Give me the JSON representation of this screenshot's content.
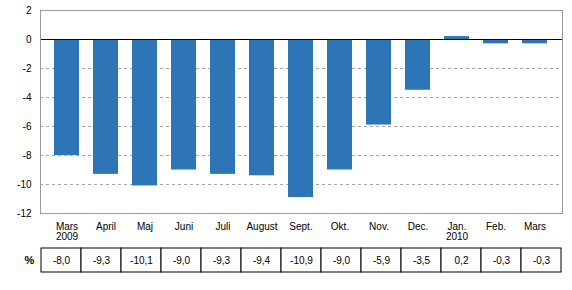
{
  "chart_data": {
    "type": "bar",
    "categories": [
      "Mars\n2009",
      "April",
      "Maj",
      "Juni",
      "Juli",
      "August",
      "Sept.",
      "Okt.",
      "Nov.",
      "Dec.",
      "Jan.\n2010",
      "Feb.",
      "Mars"
    ],
    "values": [
      -8.0,
      -9.3,
      -10.1,
      -9.0,
      -9.3,
      -9.4,
      -10.9,
      -9.0,
      -5.9,
      -3.5,
      0.2,
      -0.3,
      -0.3
    ],
    "value_labels": [
      "-8,0",
      "-9,3",
      "-10,1",
      "-9,0",
      "-9,3",
      "-9,4",
      "-10,9",
      "-9,0",
      "-5,9",
      "-3,5",
      "0,2",
      "-0,3",
      "-0,3"
    ],
    "data_labels": true,
    "color": "#2E75B6",
    "ylim": [
      -12,
      2
    ],
    "yticks": [
      -12,
      -10,
      -8,
      -6,
      -4,
      -2,
      0,
      2
    ],
    "grid": true,
    "ylabel": "%"
  }
}
